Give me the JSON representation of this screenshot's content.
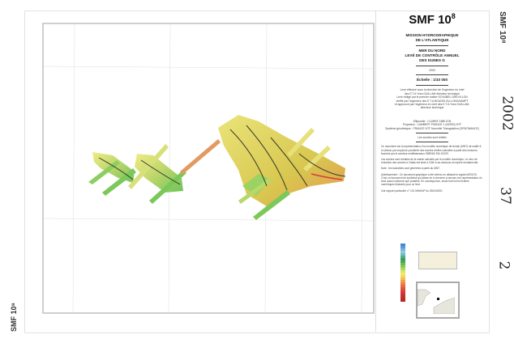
{
  "header": {
    "title": "SMF 10",
    "title_sup": "8"
  },
  "panel": {
    "mission": [
      "MISSION HYDROGRAPHIQUE",
      "DE L'ATLANTIQUE"
    ],
    "survey": [
      "MER DU NORD",
      "LEVÉ DE CONTRÔLE ANNUEL",
      "DES DUNES G"
    ],
    "year": "2000",
    "scale": "Échelle : 1/10 000",
    "credits": [
      "Levé effectué sous la direction de l'ingénieur en chef",
      "des E.T.A Yves GUILLAM directeur technique",
      "Levé rédigé par le premier maître SCHUBEL-DREVILLON",
      "vérifié par l'ingénieur des E.T.A BOUDELOU-LONGHAMPT",
      "et approuvé par l'ingénieur en chef des E.T.A Yves GUILLAM,",
      "directeur technique"
    ],
    "geodesy": [
      "Ellipsoïde : CLARKE 1880 IGN",
      "Projection : LAMBERT FRANCE 1 (NORD) NTF",
      "Système géodésique : FRANCE NTF Nouvelle Triangulation (ORDONANCE)"
    ],
    "soundings_note": "Les sondes sont réelles",
    "paragraphs": [
      "Ce document est la représentation d'un modèle numérique de terrain (MNT) de maille 5 m obtenu par moyenne pondérée des sondes réelles calculées à partir des mesures fournies par le sondeur multifaisceaux SIMRAD EM 1002S.",
      "Les sondes sont réduites de la marée calculée par le modèle numérique. Le zéro de réduction des sondes à Calais est situé à 3,58 m au-dessous du repère fondamental.",
      "Note : les isobathes sont générées à partir du MNT.",
      "Avertissement : Ce document graphique a été obtenu en utilisant le logiciel ARGOS. C'est un document de synthèse qui laisse en à chercher à donner une représentation du fond aussi conforme que possible. En conséquence, seuls font foi les fichiers numériques élaborés pour ce levé.",
      "Voir rapport particulier n° 101 MHA/NP du 26/04/2001"
    ]
  },
  "margin": {
    "side_title": "SMF 10⁸",
    "hand_year": "2002",
    "hand_num1": "37",
    "hand_num2": "2",
    "bottom_title": "SMF 10⁸"
  },
  "colors": {
    "deep": "#3b7fd0",
    "mid": "#5cb85c",
    "shallow": "#f2e35a",
    "top": "#d8433a"
  }
}
